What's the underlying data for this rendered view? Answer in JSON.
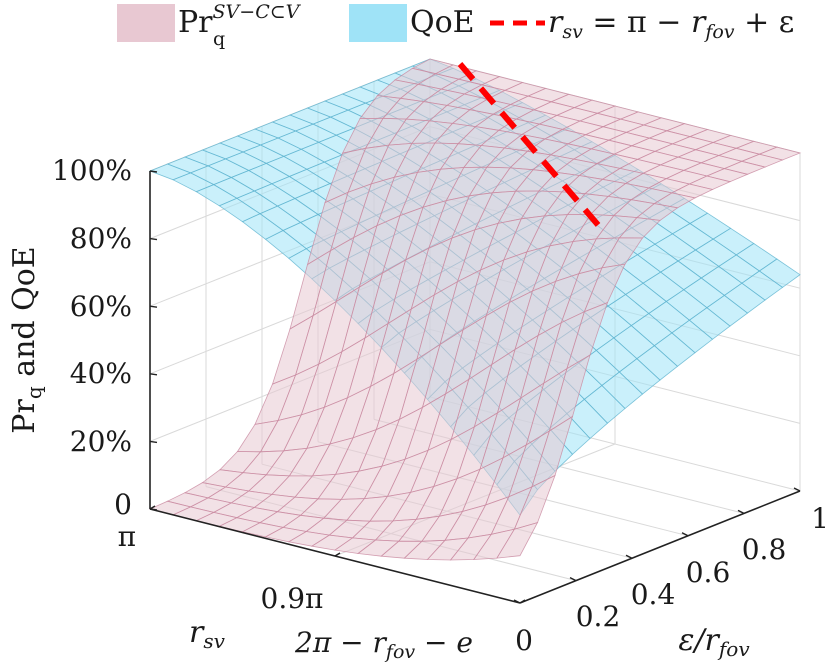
{
  "chart_data": {
    "type": "surface",
    "zlabel": "Pr_q and QoE",
    "zlim": [
      0,
      100
    ],
    "z_ticks": [
      "0",
      "20%",
      "40%",
      "60%",
      "80%",
      "100%"
    ],
    "xlabel": "r_sv",
    "x_ticks": [
      "π",
      "0.9π",
      "2π − r_fov − e"
    ],
    "ylabel": "ε/r_fov",
    "ylim": [
      0,
      1
    ],
    "y_ticks": [
      "0",
      "0.2",
      "0.4",
      "0.6",
      "0.8",
      "1"
    ],
    "grid": true,
    "legend_position": "top",
    "legend": [
      {
        "label": "Pr_q^{SV−C⊂V}",
        "color": "#e8c8d2",
        "kind": "surface"
      },
      {
        "label": "QoE",
        "color": "#9fe3f7",
        "kind": "surface"
      },
      {
        "label": "r_sv = π − r_fov + ε",
        "color": "#ff0000",
        "kind": "dashed-line"
      }
    ],
    "series": [
      {
        "name": "Pr_q^{SV−C⊂V}",
        "corners_percent": {
          "rsv_pi_eps0": 0,
          "rsv_max_eps0": 14,
          "rsv_pi_eps1": 100,
          "rsv_max_eps1": 100
        }
      },
      {
        "name": "QoE",
        "corners_percent": {
          "rsv_pi_eps0": 100,
          "rsv_max_eps0": 26,
          "rsv_pi_eps1": 100,
          "rsv_max_eps1": 64
        }
      },
      {
        "name": "r_sv = π − r_fov + ε",
        "eps_over_rfov": [
          0.3,
          0.75
        ],
        "z_percent": [
          100,
          100
        ]
      }
    ]
  },
  "legend_text": {
    "pr_main": "Pr",
    "pr_sub": "q",
    "pr_sup": "SV−C⊂V",
    "qoe": "QoE",
    "r": "r",
    "sv": "sv",
    "eq": " = π − ",
    "fov": "fov",
    "plus": " + ε"
  },
  "axis_text": {
    "z_pr": "Pr",
    "z_q": "q",
    "z_rest": " and QoE",
    "x_r": "r",
    "x_sv": "sv",
    "x3_a": "2π − r",
    "x3_fov": "fov",
    "x3_b": " − e",
    "y_a": "ε/r",
    "y_fov": "fov"
  }
}
